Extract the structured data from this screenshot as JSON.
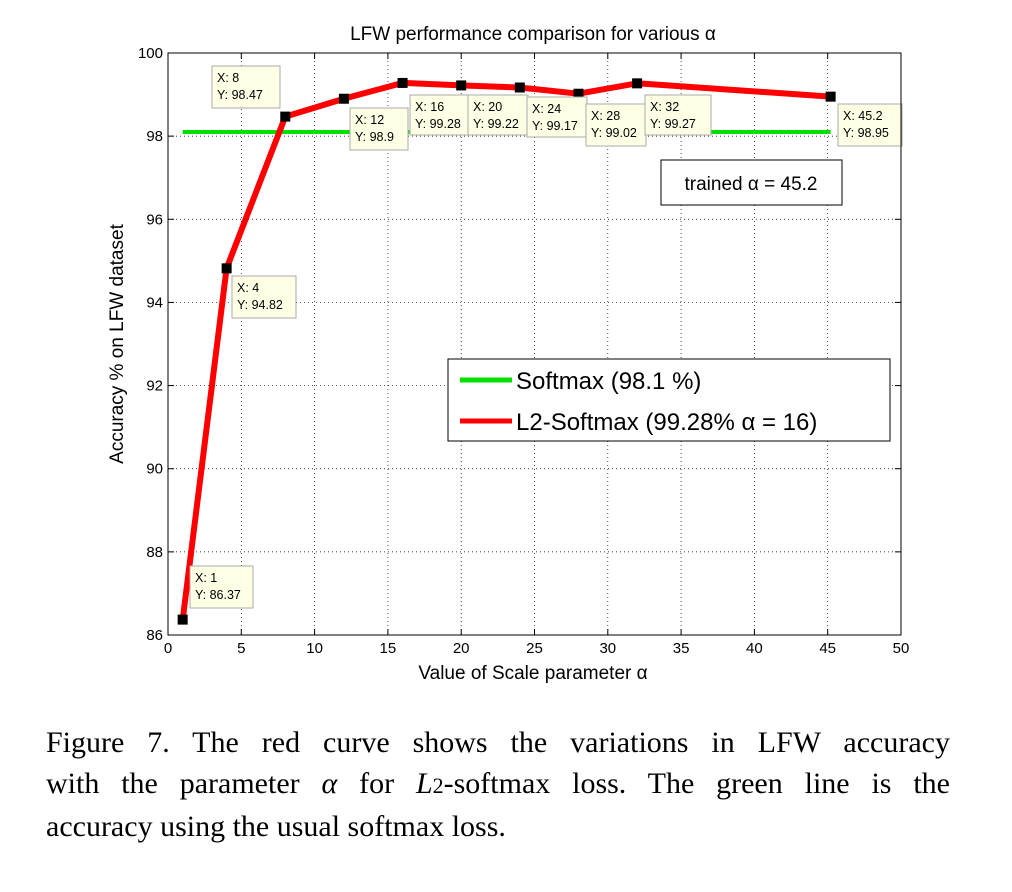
{
  "chart_data": {
    "type": "line",
    "title": "LFW performance comparison for various α",
    "xlabel": "Value of Scale parameter α",
    "ylabel": "Accuracy % on LFW dataset",
    "xlim": [
      0,
      50
    ],
    "ylim": [
      86,
      100
    ],
    "xticks": [
      0,
      5,
      10,
      15,
      20,
      25,
      30,
      35,
      40,
      45,
      50
    ],
    "yticks": [
      86,
      88,
      90,
      92,
      94,
      96,
      98,
      100
    ],
    "grid": true,
    "legend_position": "center-right",
    "series": [
      {
        "name": "Softmax (98.1 %)",
        "color": "#00e000",
        "x": [
          1,
          45.2
        ],
        "y": [
          98.1,
          98.1
        ]
      },
      {
        "name": "L2-Softmax (99.28% α = 16)",
        "color": "#ff0000",
        "x": [
          1,
          4,
          8,
          12,
          16,
          20,
          24,
          28,
          32,
          45.2
        ],
        "y": [
          86.37,
          94.82,
          98.47,
          98.9,
          99.28,
          99.22,
          99.17,
          99.02,
          99.27,
          98.95
        ]
      }
    ],
    "datatips": [
      {
        "x_label": "X: 1",
        "y_label": "Y: 86.37"
      },
      {
        "x_label": "X: 4",
        "y_label": "Y: 94.82"
      },
      {
        "x_label": "X: 8",
        "y_label": "Y: 98.47"
      },
      {
        "x_label": "X: 12",
        "y_label": "Y: 98.9"
      },
      {
        "x_label": "X: 16",
        "y_label": "Y: 99.28"
      },
      {
        "x_label": "X: 20",
        "y_label": "Y: 99.22"
      },
      {
        "x_label": "X: 24",
        "y_label": "Y: 99.17"
      },
      {
        "x_label": "X: 28",
        "y_label": "Y: 99.02"
      },
      {
        "x_label": "X: 32",
        "y_label": "Y: 99.27"
      },
      {
        "x_label": "X: 45.2",
        "y_label": "Y: 98.95"
      }
    ],
    "annotation": "trained α = 45.2"
  },
  "caption": {
    "line1": "Figure 7. The red curve shows the variations in LFW accuracy",
    "line2_a": "with the parameter ",
    "line2_alpha": "α",
    "line2_b": " for ",
    "line2_L": "L",
    "line2_sub": "2",
    "line2_c": "-softmax loss.  The green line is the",
    "line3": "accuracy using the usual softmax loss."
  }
}
